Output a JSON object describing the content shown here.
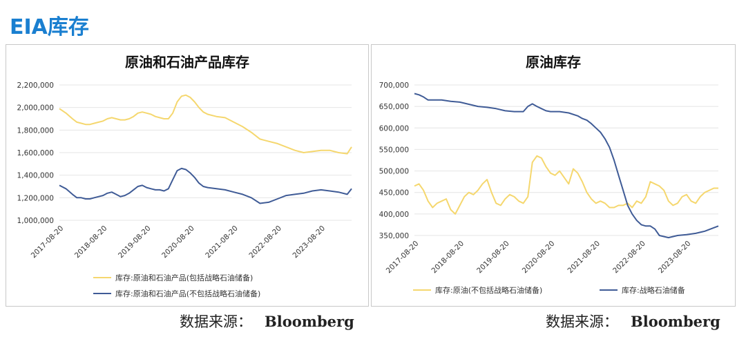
{
  "page_title": "EIA库存",
  "sources": {
    "left_label": "数据来源：",
    "left_name": "Bloomberg",
    "right_label": "数据来源：",
    "right_name": "Bloomberg"
  },
  "chart_data": [
    {
      "type": "line",
      "title": "原油和石油产品库存",
      "xlabel": "",
      "ylabel": "",
      "x_ticks": [
        "2017-08-20",
        "2018-08-20",
        "2019-08-20",
        "2020-08-20",
        "2021-08-20",
        "2022-08-20",
        "2023-08-20"
      ],
      "x_range": [
        2017.6,
        2024.3
      ],
      "ylim": [
        1000000,
        2200000
      ],
      "y_ticks": [
        1000000,
        1200000,
        1400000,
        1600000,
        1800000,
        2000000,
        2200000
      ],
      "y_tick_labels": [
        "1,000,000",
        "1,200,000",
        "1,400,000",
        "1,600,000",
        "1,800,000",
        "2,000,000",
        "2,200,000"
      ],
      "grid": "horizontal",
      "legend_position": "bottom",
      "series": [
        {
          "name": "库存:原油和石油产品(包括战略石油储备)",
          "color": "#f5d76e",
          "x": [
            2017.6,
            2017.75,
            2017.9,
            2018.0,
            2018.1,
            2018.2,
            2018.3,
            2018.4,
            2018.5,
            2018.6,
            2018.7,
            2018.8,
            2018.9,
            2019.0,
            2019.1,
            2019.2,
            2019.3,
            2019.4,
            2019.5,
            2019.6,
            2019.7,
            2019.8,
            2019.9,
            2020.0,
            2020.1,
            2020.2,
            2020.3,
            2020.4,
            2020.5,
            2020.6,
            2020.7,
            2020.8,
            2020.9,
            2021.0,
            2021.2,
            2021.4,
            2021.6,
            2021.8,
            2022.0,
            2022.2,
            2022.4,
            2022.6,
            2022.8,
            2023.0,
            2023.2,
            2023.4,
            2023.6,
            2023.8,
            2024.0,
            2024.2,
            2024.3
          ],
          "values": [
            1990000,
            1950000,
            1900000,
            1870000,
            1860000,
            1850000,
            1850000,
            1860000,
            1870000,
            1880000,
            1900000,
            1910000,
            1900000,
            1890000,
            1890000,
            1900000,
            1920000,
            1950000,
            1960000,
            1950000,
            1940000,
            1920000,
            1910000,
            1900000,
            1900000,
            1950000,
            2050000,
            2100000,
            2110000,
            2090000,
            2050000,
            2000000,
            1960000,
            1940000,
            1920000,
            1910000,
            1870000,
            1830000,
            1780000,
            1720000,
            1700000,
            1680000,
            1650000,
            1620000,
            1600000,
            1610000,
            1620000,
            1620000,
            1600000,
            1590000,
            1650000
          ]
        },
        {
          "name": "库存:原油和石油产品(不包括战略石油储备)",
          "color": "#3f5b96",
          "x": [
            2017.6,
            2017.75,
            2017.9,
            2018.0,
            2018.1,
            2018.2,
            2018.3,
            2018.4,
            2018.5,
            2018.6,
            2018.7,
            2018.8,
            2018.9,
            2019.0,
            2019.1,
            2019.2,
            2019.3,
            2019.4,
            2019.5,
            2019.6,
            2019.7,
            2019.8,
            2019.9,
            2020.0,
            2020.1,
            2020.2,
            2020.3,
            2020.4,
            2020.5,
            2020.6,
            2020.7,
            2020.8,
            2020.9,
            2021.0,
            2021.2,
            2021.4,
            2021.6,
            2021.8,
            2022.0,
            2022.2,
            2022.4,
            2022.6,
            2022.8,
            2023.0,
            2023.2,
            2023.4,
            2023.6,
            2023.8,
            2024.0,
            2024.2,
            2024.3
          ],
          "values": [
            1310000,
            1280000,
            1230000,
            1200000,
            1200000,
            1190000,
            1190000,
            1200000,
            1210000,
            1220000,
            1240000,
            1250000,
            1230000,
            1210000,
            1220000,
            1240000,
            1270000,
            1300000,
            1310000,
            1290000,
            1280000,
            1270000,
            1270000,
            1260000,
            1280000,
            1360000,
            1440000,
            1460000,
            1450000,
            1420000,
            1380000,
            1330000,
            1300000,
            1290000,
            1280000,
            1270000,
            1250000,
            1230000,
            1200000,
            1150000,
            1160000,
            1190000,
            1220000,
            1230000,
            1240000,
            1260000,
            1270000,
            1260000,
            1250000,
            1230000,
            1280000
          ]
        }
      ]
    },
    {
      "type": "line",
      "title": "原油库存",
      "xlabel": "",
      "ylabel": "",
      "x_ticks": [
        "2017-08-20",
        "2018-08-20",
        "2019-08-20",
        "2020-08-20",
        "2021-08-20",
        "2022-08-20",
        "2023-08-20"
      ],
      "x_range": [
        2017.6,
        2024.3
      ],
      "ylim": [
        350000,
        700000
      ],
      "y_ticks": [
        350000,
        400000,
        450000,
        500000,
        550000,
        600000,
        650000,
        700000
      ],
      "y_tick_labels": [
        "350,000",
        "400,000",
        "450,000",
        "500,000",
        "550,000",
        "600,000",
        "650,000",
        "700,000"
      ],
      "grid": "horizontal",
      "legend_position": "bottom",
      "series": [
        {
          "name": "库存:原油(不包括战略石油储备)",
          "color": "#f5d76e",
          "x": [
            2017.6,
            2017.7,
            2017.8,
            2017.9,
            2018.0,
            2018.1,
            2018.2,
            2018.3,
            2018.4,
            2018.5,
            2018.6,
            2018.7,
            2018.8,
            2018.9,
            2019.0,
            2019.1,
            2019.2,
            2019.3,
            2019.4,
            2019.5,
            2019.6,
            2019.7,
            2019.8,
            2019.9,
            2020.0,
            2020.1,
            2020.2,
            2020.3,
            2020.4,
            2020.5,
            2020.6,
            2020.7,
            2020.8,
            2020.9,
            2021.0,
            2021.1,
            2021.2,
            2021.3,
            2021.4,
            2021.5,
            2021.6,
            2021.7,
            2021.8,
            2021.9,
            2022.0,
            2022.1,
            2022.2,
            2022.3,
            2022.4,
            2022.5,
            2022.6,
            2022.7,
            2022.8,
            2022.9,
            2023.0,
            2023.1,
            2023.2,
            2023.3,
            2023.4,
            2023.5,
            2023.6,
            2023.7,
            2023.8,
            2023.9,
            2024.0,
            2024.1,
            2024.2,
            2024.3
          ],
          "values": [
            465000,
            470000,
            455000,
            430000,
            415000,
            425000,
            430000,
            435000,
            410000,
            400000,
            420000,
            440000,
            450000,
            445000,
            455000,
            470000,
            480000,
            450000,
            425000,
            420000,
            435000,
            445000,
            440000,
            430000,
            425000,
            440000,
            520000,
            535000,
            530000,
            510000,
            495000,
            490000,
            500000,
            485000,
            470000,
            505000,
            495000,
            475000,
            450000,
            435000,
            425000,
            430000,
            425000,
            415000,
            415000,
            420000,
            420000,
            425000,
            415000,
            430000,
            425000,
            440000,
            475000,
            470000,
            465000,
            455000,
            430000,
            420000,
            425000,
            440000,
            445000,
            430000,
            425000,
            440000,
            450000,
            455000,
            460000,
            460000
          ]
        },
        {
          "name": "库存:战略石油储备",
          "color": "#3f5b96",
          "x": [
            2017.6,
            2017.7,
            2017.8,
            2017.9,
            2018.0,
            2018.2,
            2018.4,
            2018.6,
            2018.8,
            2019.0,
            2019.2,
            2019.4,
            2019.6,
            2019.8,
            2020.0,
            2020.1,
            2020.2,
            2020.3,
            2020.4,
            2020.5,
            2020.6,
            2020.8,
            2021.0,
            2021.2,
            2021.3,
            2021.4,
            2021.5,
            2021.6,
            2021.7,
            2021.8,
            2021.9,
            2022.0,
            2022.1,
            2022.2,
            2022.3,
            2022.4,
            2022.5,
            2022.6,
            2022.7,
            2022.8,
            2022.9,
            2023.0,
            2023.2,
            2023.4,
            2023.6,
            2023.8,
            2024.0,
            2024.2,
            2024.3
          ],
          "values": [
            680000,
            677000,
            672000,
            665000,
            665000,
            665000,
            662000,
            660000,
            655000,
            650000,
            648000,
            645000,
            640000,
            638000,
            638000,
            650000,
            656000,
            650000,
            645000,
            640000,
            638000,
            638000,
            635000,
            628000,
            622000,
            618000,
            610000,
            600000,
            590000,
            575000,
            555000,
            525000,
            490000,
            455000,
            420000,
            400000,
            385000,
            375000,
            372000,
            372000,
            365000,
            350000,
            345000,
            350000,
            352000,
            355000,
            360000,
            368000,
            372000
          ]
        }
      ]
    }
  ]
}
